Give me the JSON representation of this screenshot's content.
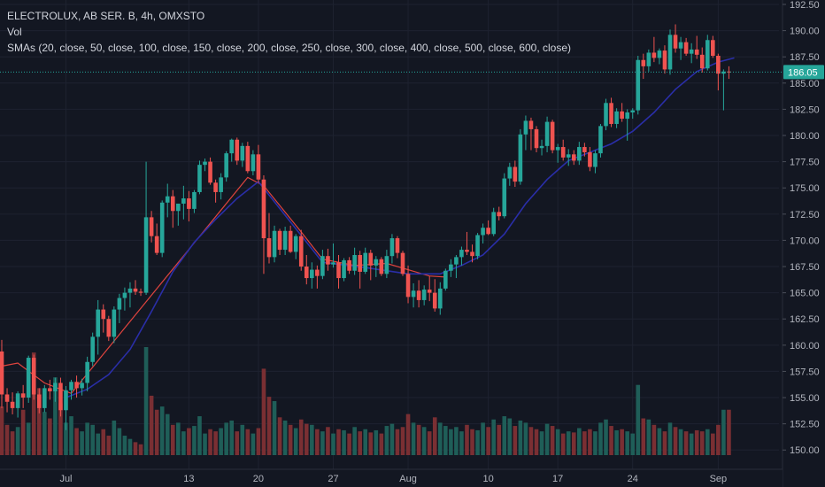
{
  "legend": {
    "title": "ELECTROLUX, AB SER. B, 4h, OMXSTO",
    "volume": "Vol",
    "smas": "SMAs (20, close, 50, close, 100, close, 150, close, 200, close, 250, close, 300, close, 400, close, 500, close, 600, close)"
  },
  "colors": {
    "background": "#131722",
    "up": "#26a69a",
    "down": "#ef5350",
    "up_volume": "#1f5e58",
    "down_volume": "#7a2f33",
    "sma_fast": "#e0443e",
    "sma_slow": "#2a2ea8",
    "last_price": "#26a69a"
  },
  "chart_data": {
    "type": "candlestick",
    "symbol": "ELECTROLUX, AB SER. B",
    "interval": "4h",
    "exchange": "OMXSTO",
    "ylim": [
      148.5,
      192.5
    ],
    "y_ticks": [
      "150.00",
      "152.50",
      "155.00",
      "157.50",
      "160.00",
      "162.50",
      "165.00",
      "167.50",
      "170.00",
      "172.50",
      "175.00",
      "177.50",
      "180.00",
      "182.50",
      "185.00",
      "187.50",
      "190.00",
      "192.50"
    ],
    "x_ticks": [
      {
        "label": "Jul",
        "index": 12
      },
      {
        "label": "13",
        "index": 35
      },
      {
        "label": "20",
        "index": 48
      },
      {
        "label": "27",
        "index": 62
      },
      {
        "label": "Aug",
        "index": 76
      },
      {
        "label": "10",
        "index": 91
      },
      {
        "label": "17",
        "index": 104
      },
      {
        "label": "24",
        "index": 118
      },
      {
        "label": "Sep",
        "index": 134
      }
    ],
    "last_price": "186.05",
    "last_price_value": 186.05,
    "candles": [
      [
        159.4,
        160.5,
        154.0,
        155.3
      ],
      [
        155.3,
        155.9,
        153.6,
        154.6
      ],
      [
        154.6,
        155.5,
        153.4,
        154.0
      ],
      [
        154.0,
        155.6,
        153.1,
        155.4
      ],
      [
        155.4,
        156.2,
        154.0,
        155.0
      ],
      [
        155.0,
        159.0,
        154.5,
        158.8
      ],
      [
        158.8,
        159.1,
        154.8,
        155.3
      ],
      [
        155.3,
        155.9,
        153.5,
        154.0
      ],
      [
        154.0,
        156.2,
        153.6,
        155.9
      ],
      [
        155.9,
        156.7,
        154.8,
        155.6
      ],
      [
        155.6,
        156.9,
        154.6,
        156.4
      ],
      [
        156.4,
        156.9,
        153.2,
        153.8
      ],
      [
        153.8,
        156.1,
        151.9,
        155.7
      ],
      [
        155.7,
        156.7,
        154.8,
        156.5
      ],
      [
        156.5,
        157.1,
        155.0,
        155.9
      ],
      [
        155.9,
        156.8,
        155.2,
        156.4
      ],
      [
        156.4,
        158.9,
        155.6,
        158.4
      ],
      [
        158.4,
        161.2,
        158.0,
        160.8
      ],
      [
        160.8,
        164.3,
        159.1,
        163.4
      ],
      [
        163.4,
        163.9,
        161.2,
        162.5
      ],
      [
        162.5,
        162.8,
        160.4,
        160.8
      ],
      [
        160.8,
        163.7,
        160.2,
        163.4
      ],
      [
        163.4,
        164.9,
        162.1,
        164.5
      ],
      [
        164.5,
        165.5,
        163.3,
        165.0
      ],
      [
        165.0,
        166.0,
        163.6,
        165.4
      ],
      [
        165.4,
        166.2,
        164.8,
        165.1
      ],
      [
        165.1,
        165.4,
        164.7,
        165.0
      ],
      [
        165.0,
        177.5,
        164.8,
        172.2
      ],
      [
        172.2,
        172.8,
        169.8,
        170.4
      ],
      [
        170.4,
        171.6,
        168.6,
        168.8
      ],
      [
        168.8,
        173.8,
        168.4,
        173.6
      ],
      [
        173.6,
        175.4,
        172.2,
        174.2
      ],
      [
        174.2,
        174.8,
        171.2,
        172.8
      ],
      [
        172.8,
        173.5,
        171.4,
        173.5
      ],
      [
        173.5,
        175.2,
        172.0,
        174.0
      ],
      [
        174.0,
        174.7,
        171.8,
        173.0
      ],
      [
        173.0,
        174.8,
        172.6,
        174.6
      ],
      [
        174.6,
        177.6,
        174.4,
        177.2
      ],
      [
        177.2,
        177.8,
        176.6,
        177.5
      ],
      [
        177.5,
        177.9,
        175.3,
        175.5
      ],
      [
        175.5,
        175.8,
        173.6,
        174.6
      ],
      [
        174.6,
        176.4,
        173.9,
        176.0
      ],
      [
        176.0,
        178.5,
        175.6,
        178.3
      ],
      [
        178.3,
        179.7,
        177.5,
        179.6
      ],
      [
        179.6,
        179.8,
        177.2,
        177.6
      ],
      [
        177.6,
        179.3,
        177.0,
        179.0
      ],
      [
        179.0,
        179.4,
        176.4,
        176.6
      ],
      [
        176.6,
        178.6,
        176.2,
        178.2
      ],
      [
        178.2,
        179.1,
        175.5,
        175.8
      ],
      [
        175.8,
        176.2,
        166.8,
        170.2
      ],
      [
        170.2,
        172.6,
        167.8,
        168.4
      ],
      [
        168.4,
        171.4,
        167.9,
        170.9
      ],
      [
        170.9,
        171.1,
        168.6,
        169.1
      ],
      [
        169.1,
        171.3,
        168.6,
        170.9
      ],
      [
        170.9,
        171.4,
        168.8,
        168.9
      ],
      [
        168.9,
        170.6,
        168.2,
        170.4
      ],
      [
        170.4,
        171.0,
        167.1,
        167.5
      ],
      [
        167.5,
        168.6,
        165.8,
        166.4
      ],
      [
        166.4,
        167.9,
        165.4,
        167.2
      ],
      [
        167.2,
        167.6,
        165.4,
        166.6
      ],
      [
        166.6,
        169.1,
        166.3,
        168.5
      ],
      [
        168.5,
        169.2,
        167.1,
        167.7
      ],
      [
        167.7,
        169.7,
        167.4,
        167.9
      ],
      [
        167.9,
        168.6,
        165.4,
        166.4
      ],
      [
        166.4,
        168.3,
        166.1,
        168.1
      ],
      [
        168.1,
        168.4,
        166.8,
        167.1
      ],
      [
        167.1,
        169.3,
        166.7,
        168.6
      ],
      [
        168.6,
        169.0,
        165.4,
        167.0
      ],
      [
        167.0,
        169.3,
        166.8,
        168.8
      ],
      [
        168.8,
        169.1,
        166.2,
        167.6
      ],
      [
        167.6,
        168.5,
        166.5,
        168.2
      ],
      [
        168.2,
        168.4,
        166.6,
        166.8
      ],
      [
        166.8,
        169.1,
        166.4,
        168.5
      ],
      [
        168.5,
        170.6,
        167.8,
        170.2
      ],
      [
        170.2,
        170.4,
        168.3,
        168.8
      ],
      [
        168.8,
        169.0,
        166.6,
        166.8
      ],
      [
        166.8,
        167.6,
        164.0,
        164.6
      ],
      [
        164.6,
        165.9,
        163.6,
        165.2
      ],
      [
        165.2,
        166.2,
        163.6,
        164.3
      ],
      [
        164.3,
        165.7,
        163.8,
        165.3
      ],
      [
        165.3,
        166.6,
        164.2,
        165.0
      ],
      [
        165.0,
        166.3,
        163.2,
        163.5
      ],
      [
        163.5,
        166.0,
        162.9,
        165.4
      ],
      [
        165.4,
        167.3,
        165.2,
        167.1
      ],
      [
        167.1,
        168.2,
        166.5,
        167.7
      ],
      [
        167.7,
        168.6,
        166.4,
        168.4
      ],
      [
        168.4,
        169.4,
        167.6,
        169.1
      ],
      [
        169.1,
        170.8,
        168.6,
        168.9
      ],
      [
        168.9,
        169.6,
        167.9,
        168.5
      ],
      [
        168.5,
        170.7,
        168.2,
        170.5
      ],
      [
        170.5,
        171.6,
        169.7,
        171.2
      ],
      [
        171.2,
        171.9,
        170.5,
        170.6
      ],
      [
        170.6,
        173.1,
        170.4,
        172.7
      ],
      [
        172.7,
        173.2,
        171.9,
        172.3
      ],
      [
        172.3,
        176.4,
        172.1,
        175.9
      ],
      [
        175.9,
        177.4,
        175.2,
        177.0
      ],
      [
        177.0,
        177.6,
        175.1,
        175.6
      ],
      [
        175.6,
        180.6,
        175.3,
        180.1
      ],
      [
        180.1,
        181.9,
        178.6,
        181.4
      ],
      [
        181.4,
        181.7,
        178.6,
        180.6
      ],
      [
        180.6,
        180.9,
        178.4,
        178.8
      ],
      [
        178.8,
        179.6,
        178.1,
        179.0
      ],
      [
        179.0,
        181.8,
        178.4,
        181.3
      ],
      [
        181.3,
        181.5,
        178.3,
        178.6
      ],
      [
        178.6,
        179.2,
        177.4,
        178.9
      ],
      [
        178.9,
        179.6,
        177.6,
        177.9
      ],
      [
        177.9,
        178.7,
        177.1,
        178.2
      ],
      [
        178.2,
        178.6,
        177.2,
        177.6
      ],
      [
        177.6,
        179.4,
        177.2,
        178.9
      ],
      [
        178.9,
        179.3,
        178.0,
        178.4
      ],
      [
        178.4,
        178.9,
        176.6,
        177.0
      ],
      [
        177.0,
        178.6,
        176.4,
        178.3
      ],
      [
        178.3,
        181.1,
        177.9,
        180.9
      ],
      [
        180.9,
        183.5,
        180.5,
        183.1
      ],
      [
        183.1,
        183.6,
        180.8,
        181.1
      ],
      [
        181.1,
        182.6,
        180.7,
        182.3
      ],
      [
        182.3,
        183.1,
        181.3,
        181.6
      ],
      [
        181.6,
        182.5,
        179.5,
        182.2
      ],
      [
        182.2,
        182.6,
        181.6,
        182.4
      ],
      [
        182.4,
        187.6,
        182.0,
        187.2
      ],
      [
        187.2,
        187.8,
        185.4,
        186.6
      ],
      [
        186.6,
        188.2,
        186.1,
        187.9
      ],
      [
        187.9,
        189.4,
        187.0,
        187.4
      ],
      [
        187.4,
        188.3,
        186.8,
        188.1
      ],
      [
        188.1,
        188.6,
        185.9,
        186.3
      ],
      [
        186.3,
        190.1,
        185.8,
        189.6
      ],
      [
        189.6,
        190.6,
        187.9,
        188.3
      ],
      [
        188.3,
        189.4,
        187.2,
        188.9
      ],
      [
        188.9,
        189.3,
        187.6,
        187.8
      ],
      [
        187.8,
        188.8,
        186.9,
        188.2
      ],
      [
        188.2,
        189.5,
        187.3,
        187.7
      ],
      [
        187.7,
        188.4,
        186.0,
        186.4
      ],
      [
        186.4,
        189.6,
        186.2,
        189.1
      ],
      [
        189.1,
        189.5,
        187.4,
        187.6
      ],
      [
        187.6,
        187.8,
        184.3,
        185.9
      ],
      [
        185.9,
        186.3,
        182.4,
        186.1
      ],
      [
        186.1,
        186.6,
        185.4,
        186.05
      ]
    ],
    "volume": [
      0.45,
      0.28,
      0.22,
      0.26,
      0.42,
      0.3,
      0.95,
      0.62,
      0.4,
      0.34,
      0.72,
      0.48,
      0.3,
      0.36,
      0.25,
      0.22,
      0.3,
      0.28,
      0.2,
      0.24,
      0.18,
      0.32,
      0.25,
      0.18,
      0.15,
      0.12,
      0.1,
      1.0,
      0.55,
      0.42,
      0.45,
      0.38,
      0.28,
      0.3,
      0.22,
      0.25,
      0.27,
      0.36,
      0.2,
      0.24,
      0.22,
      0.25,
      0.3,
      0.32,
      0.22,
      0.28,
      0.24,
      0.2,
      0.25,
      0.8,
      0.54,
      0.5,
      0.35,
      0.32,
      0.28,
      0.25,
      0.33,
      0.29,
      0.28,
      0.24,
      0.22,
      0.26,
      0.2,
      0.24,
      0.23,
      0.2,
      0.26,
      0.22,
      0.24,
      0.21,
      0.23,
      0.2,
      0.27,
      0.29,
      0.24,
      0.26,
      0.38,
      0.3,
      0.28,
      0.26,
      0.22,
      0.35,
      0.3,
      0.27,
      0.24,
      0.26,
      0.22,
      0.28,
      0.24,
      0.23,
      0.3,
      0.26,
      0.33,
      0.28,
      0.36,
      0.34,
      0.27,
      0.32,
      0.3,
      0.26,
      0.24,
      0.22,
      0.29,
      0.27,
      0.24,
      0.2,
      0.22,
      0.21,
      0.25,
      0.22,
      0.24,
      0.22,
      0.3,
      0.33,
      0.27,
      0.23,
      0.24,
      0.22,
      0.2,
      0.65,
      0.34,
      0.33,
      0.28,
      0.25,
      0.22,
      0.3,
      0.26,
      0.24,
      0.22,
      0.2,
      0.23,
      0.22,
      0.24,
      0.2,
      0.28,
      0.42,
      0.42,
      0.1
    ],
    "sma_fast": [
      [
        0,
        158.0
      ],
      [
        3,
        158.3
      ],
      [
        8,
        156.4
      ],
      [
        13,
        155.4
      ],
      [
        46,
        176.0
      ],
      [
        49,
        175.2
      ],
      [
        56,
        170.8
      ],
      [
        60,
        168.2
      ],
      [
        66,
        167.6
      ],
      [
        72,
        167.8
      ],
      [
        76,
        167.2
      ],
      [
        80,
        166.6
      ],
      [
        83,
        166.5
      ]
    ],
    "sma_slow": [
      [
        12,
        155.0
      ],
      [
        16,
        155.8
      ],
      [
        20,
        157.2
      ],
      [
        24,
        159.6
      ],
      [
        28,
        163.2
      ],
      [
        32,
        167.0
      ],
      [
        36,
        169.8
      ],
      [
        40,
        172.0
      ],
      [
        44,
        174.0
      ],
      [
        48,
        175.6
      ],
      [
        60,
        167.9
      ],
      [
        68,
        167.4
      ],
      [
        76,
        166.8
      ],
      [
        82,
        166.8
      ],
      [
        86,
        167.6
      ],
      [
        90,
        168.6
      ],
      [
        94,
        170.6
      ],
      [
        98,
        173.5
      ],
      [
        102,
        175.8
      ],
      [
        106,
        177.6
      ],
      [
        110,
        178.4
      ],
      [
        114,
        179.2
      ],
      [
        118,
        180.4
      ],
      [
        122,
        182.2
      ],
      [
        126,
        184.4
      ],
      [
        130,
        186.1
      ],
      [
        134,
        187.0
      ],
      [
        137,
        187.4
      ]
    ]
  }
}
